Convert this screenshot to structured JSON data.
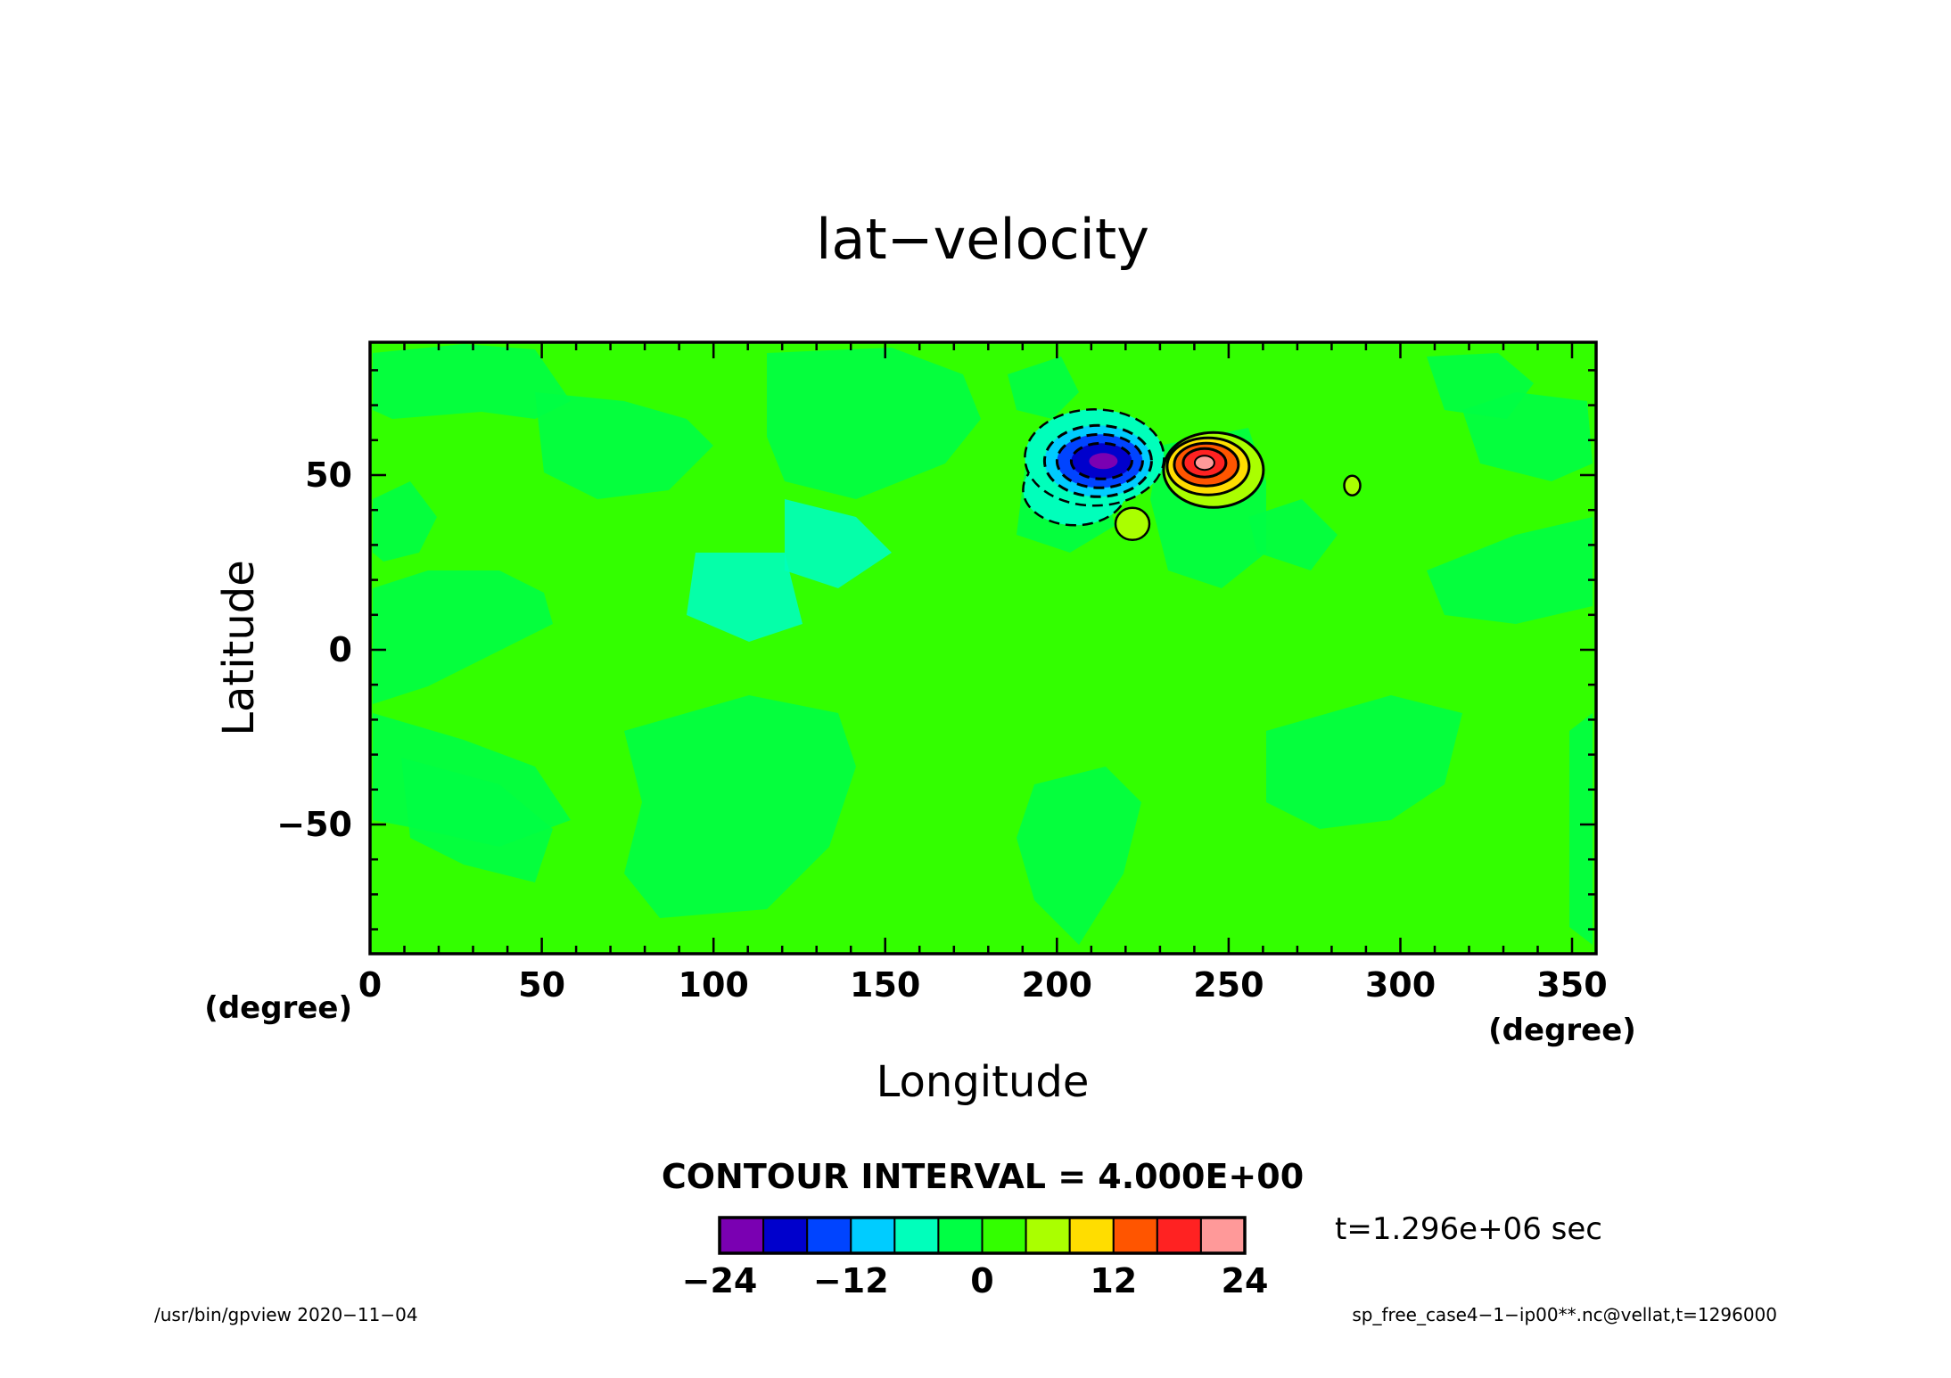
{
  "chart_data": {
    "type": "heatmap",
    "title": "lat−velocity",
    "xlabel": "Longitude",
    "ylabel": "Latitude",
    "x_unit": "(degree)",
    "y_unit": "(degree)",
    "xlim": [
      0,
      357
    ],
    "ylim": [
      -87,
      88
    ],
    "x_ticks": [
      "0",
      "50",
      "100",
      "150",
      "200",
      "250",
      "300",
      "350"
    ],
    "x_tick_values": [
      0,
      50,
      100,
      150,
      200,
      250,
      300,
      350
    ],
    "y_ticks": [
      "50",
      "0",
      "−50"
    ],
    "y_tick_values": [
      50,
      0,
      -50
    ],
    "background_color": "#33ff00",
    "contour_interval_label": "CONTOUR INTERVAL = 4.000E+00",
    "colorbar": {
      "levels": [
        -24,
        -20,
        -16,
        -12,
        -8,
        -4,
        0,
        4,
        8,
        12,
        16,
        20,
        24
      ],
      "colors": [
        "#7a00b2",
        "#0000cc",
        "#0044ff",
        "#00ccff",
        "#00ffbb",
        "#00ff44",
        "#33ff00",
        "#aaff00",
        "#ffdd00",
        "#ff5500",
        "#ff2222",
        "#ff9999"
      ],
      "tick_labels": [
        "−24",
        "−12",
        "0",
        "12",
        "24"
      ],
      "tick_values": [
        -24,
        -12,
        0,
        12,
        24
      ]
    },
    "features": [
      {
        "name": "negative-vortex",
        "lon": 213,
        "lat": 54,
        "min": -24
      },
      {
        "name": "positive-vortex",
        "lon": 243,
        "lat": 53,
        "max": 24
      },
      {
        "name": "small-positive-blob",
        "lon": 222,
        "lat": 36,
        "max": 8
      },
      {
        "name": "small-positive-blob-2",
        "lon": 286,
        "lat": 47,
        "max": 4
      }
    ],
    "time_label": "t=1.296e+06 sec"
  },
  "footer": {
    "left": "/usr/bin/gpview   2020−11−04",
    "right": "sp_free_case4−1−ip00**.nc@vellat,t=1296000"
  }
}
